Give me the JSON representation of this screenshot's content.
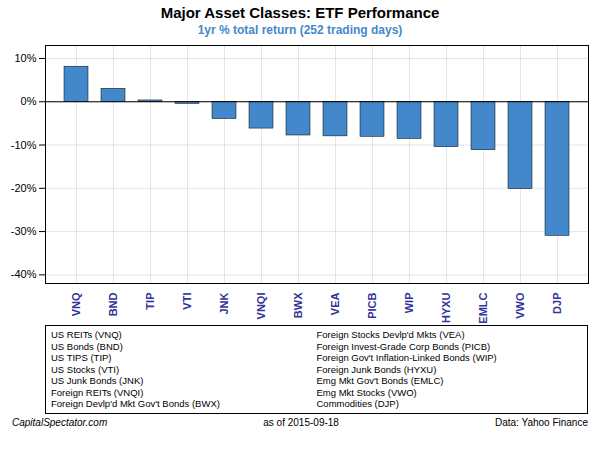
{
  "chart_data": {
    "type": "bar",
    "title": "Major Asset Classes: ETF Performance",
    "subtitle": "1yr % total return (252 trading days)",
    "categories": [
      "VNQ",
      "BND",
      "TIP",
      "VTI",
      "JNK",
      "VNQI",
      "BWX",
      "VEA",
      "PICB",
      "WIP",
      "HYXU",
      "EMLC",
      "VWO",
      "DJP"
    ],
    "values": [
      8.1,
      3.0,
      0.3,
      -0.5,
      -4.0,
      -6.2,
      -7.8,
      -8.0,
      -8.1,
      -8.6,
      -10.5,
      -11.2,
      -20.2,
      -31.0
    ],
    "color": "#4488CC",
    "ylim": [
      -42,
      13
    ],
    "yticks": [
      {
        "value": -40,
        "label": "-40%"
      },
      {
        "value": -30,
        "label": "-30%"
      },
      {
        "value": -20,
        "label": "-20%"
      },
      {
        "value": -10,
        "label": "-10%"
      },
      {
        "value": 0,
        "label": "0%"
      },
      {
        "value": 10,
        "label": "10%"
      }
    ],
    "grid": true,
    "annotations": [
      "US REITs (VNQ)",
      "US Bonds (BND)",
      "US TIPS (TIP)",
      "US Stocks (VTI)",
      "US Junk Bonds (JNK)",
      "Foreign REITs (VNQI)",
      "Foreign Devlp'd Mkt Gov't Bonds (BWX)",
      "Foreign Stocks Devlp'd Mkts (VEA)",
      "Foreign Invest-Grade Corp Bonds (PICB)",
      "Foreign Gov't Inflation-Linked Bonds (WIP)",
      "Foreign Junk Bonds (HYXU)",
      "Emg Mkt Gov't Bonds (EMLC)",
      "Emg Mkt Stocks (VWO)",
      "Commodities (DJP)"
    ],
    "footer": [
      "CapitalSpectator.com",
      "as of  2015-09-18",
      "Data: Yahoo Finance"
    ]
  }
}
